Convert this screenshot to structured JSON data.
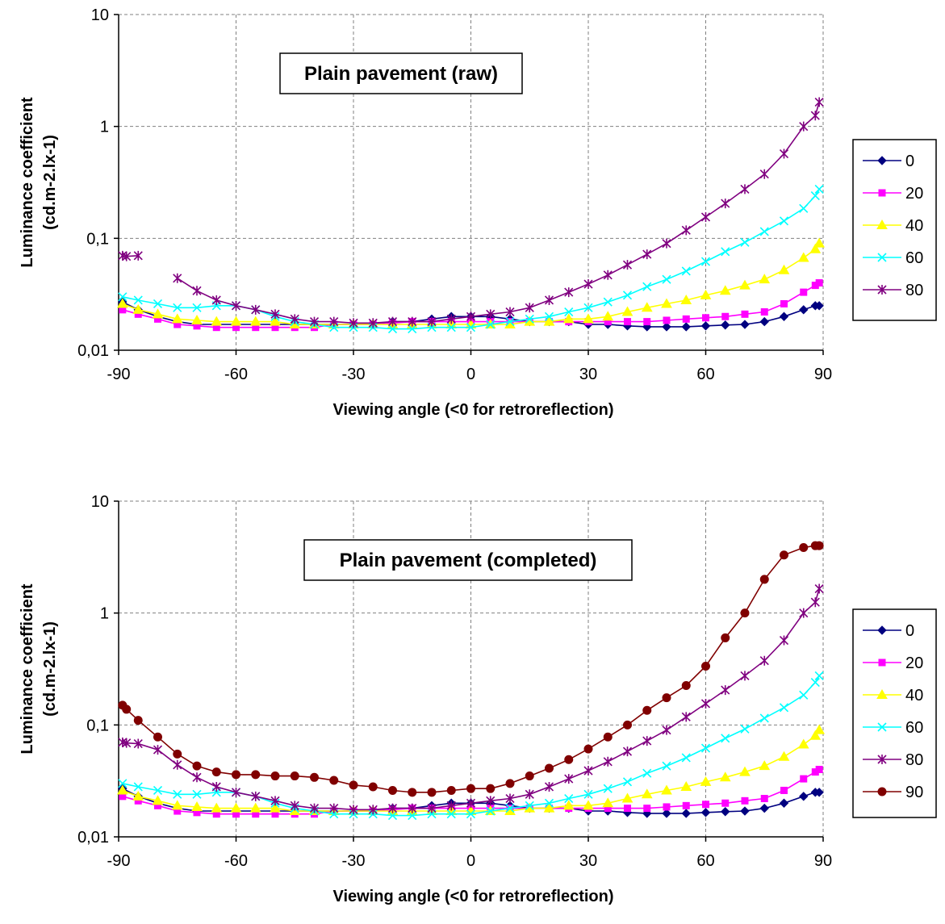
{
  "chart_data": [
    {
      "type": "line",
      "title": "Plain pavement (raw)",
      "xlabel": "Viewing angle (<0 for retroreflection)",
      "ylabel": "Luminance coefficient (cd.m-2.lx-1)",
      "ylabel_lines": [
        "Luminance coefficient",
        "(cd.m-2.lx-1)"
      ],
      "xlim": [
        -90,
        90
      ],
      "ylim": [
        0.01,
        10
      ],
      "y_scale": "log",
      "x_ticks": [
        "-90",
        "-60",
        "-30",
        "0",
        "30",
        "60",
        "90"
      ],
      "y_ticks": [
        "0,01",
        "0,1",
        "1",
        "10"
      ],
      "grid": true,
      "legend_position": "right",
      "series": [
        {
          "name": "0",
          "color": "#000080",
          "marker": "diamond",
          "x": [
            -89,
            -85,
            -80,
            -75,
            -70,
            -65,
            -60,
            -55,
            -50,
            -45,
            -40,
            -35,
            -30,
            -25,
            -20,
            -15,
            -10,
            -5,
            0,
            5,
            10,
            15,
            20,
            25,
            30,
            35,
            40,
            45,
            50,
            55,
            60,
            65,
            70,
            75,
            80,
            85,
            88,
            89
          ],
          "y": [
            0.027,
            0.023,
            0.02,
            0.018,
            0.017,
            0.017,
            0.017,
            0.017,
            0.017,
            0.017,
            0.017,
            0.017,
            0.017,
            0.017,
            0.018,
            0.018,
            0.019,
            0.02,
            0.02,
            0.02,
            0.019,
            0.018,
            0.018,
            0.018,
            0.017,
            0.017,
            0.0165,
            0.0162,
            0.0162,
            0.0162,
            0.0165,
            0.0168,
            0.017,
            0.018,
            0.02,
            0.023,
            0.025,
            0.025
          ]
        },
        {
          "name": "20",
          "color": "#ff00ff",
          "marker": "square",
          "x": [
            -89,
            -85,
            -80,
            -75,
            -70,
            -65,
            -60,
            -55,
            -50,
            -45,
            -40,
            -35,
            -30,
            -25,
            -20,
            -15,
            -10,
            -5,
            0,
            5,
            10,
            15,
            20,
            25,
            30,
            35,
            40,
            45,
            50,
            55,
            60,
            65,
            70,
            75,
            80,
            85,
            88,
            89
          ],
          "y": [
            0.023,
            0.021,
            0.019,
            0.017,
            0.0165,
            0.016,
            0.016,
            0.016,
            0.016,
            0.016,
            0.016,
            0.017,
            0.017,
            0.017,
            0.0175,
            0.018,
            0.018,
            0.018,
            0.018,
            0.018,
            0.018,
            0.018,
            0.018,
            0.018,
            0.018,
            0.018,
            0.018,
            0.018,
            0.0185,
            0.019,
            0.0195,
            0.02,
            0.021,
            0.022,
            0.026,
            0.033,
            0.038,
            0.04
          ]
        },
        {
          "name": "40",
          "color": "#ffff00",
          "marker": "triangle",
          "x": [
            -89,
            -85,
            -80,
            -75,
            -70,
            -65,
            -60,
            -55,
            -50,
            -45,
            -40,
            -35,
            -30,
            -25,
            -20,
            -15,
            -10,
            -5,
            0,
            5,
            10,
            15,
            20,
            25,
            30,
            35,
            40,
            45,
            50,
            55,
            60,
            65,
            70,
            75,
            80,
            85,
            88,
            89
          ],
          "y": [
            0.026,
            0.023,
            0.021,
            0.019,
            0.0185,
            0.018,
            0.018,
            0.018,
            0.018,
            0.017,
            0.017,
            0.017,
            0.017,
            0.017,
            0.017,
            0.017,
            0.017,
            0.017,
            0.017,
            0.017,
            0.017,
            0.018,
            0.018,
            0.019,
            0.019,
            0.02,
            0.022,
            0.024,
            0.026,
            0.028,
            0.031,
            0.034,
            0.038,
            0.043,
            0.052,
            0.067,
            0.08,
            0.09
          ]
        },
        {
          "name": "60",
          "color": "#00ffff",
          "marker": "x",
          "x": [
            -89,
            -85,
            -80,
            -75,
            -70,
            -65,
            -60,
            -55,
            -50,
            -45,
            -40,
            -35,
            -30,
            -25,
            -20,
            -15,
            -10,
            -5,
            0,
            5,
            10,
            15,
            20,
            25,
            30,
            35,
            40,
            45,
            50,
            55,
            60,
            65,
            70,
            75,
            80,
            85,
            88,
            89
          ],
          "y": [
            0.03,
            0.028,
            0.026,
            0.024,
            0.024,
            0.025,
            0.025,
            0.023,
            0.02,
            0.018,
            0.017,
            0.016,
            0.016,
            0.016,
            0.0155,
            0.0155,
            0.016,
            0.016,
            0.016,
            0.017,
            0.018,
            0.019,
            0.02,
            0.022,
            0.024,
            0.027,
            0.031,
            0.037,
            0.043,
            0.051,
            0.062,
            0.076,
            0.092,
            0.115,
            0.143,
            0.185,
            0.24,
            0.275
          ]
        },
        {
          "name": "80",
          "color": "#800080",
          "marker": "star",
          "x": [
            -89,
            -88,
            -85,
            -75,
            -70,
            -65,
            -60,
            -55,
            -50,
            -45,
            -40,
            -35,
            -30,
            -25,
            -20,
            -15,
            -10,
            -5,
            0,
            5,
            10,
            15,
            20,
            25,
            30,
            35,
            40,
            45,
            50,
            55,
            60,
            65,
            70,
            75,
            80,
            85,
            88,
            89
          ],
          "y": [
            0.07,
            0.069,
            0.07,
            0.044,
            0.034,
            0.028,
            0.025,
            0.023,
            0.021,
            0.019,
            0.018,
            0.018,
            0.0175,
            0.0175,
            0.018,
            0.018,
            0.018,
            0.019,
            0.02,
            0.021,
            0.022,
            0.024,
            0.028,
            0.033,
            0.039,
            0.047,
            0.058,
            0.072,
            0.09,
            0.118,
            0.155,
            0.205,
            0.275,
            0.375,
            0.57,
            1.0,
            1.25,
            1.65
          ],
          "gaps_after_index": [
            2
          ]
        }
      ]
    },
    {
      "type": "line",
      "title": "Plain pavement (completed)",
      "xlabel": "Viewing angle (<0 for retroreflection)",
      "ylabel": "Luminance coefficient (cd.m-2.lx-1)",
      "ylabel_lines": [
        "Luminance coefficient",
        "(cd.m-2.lx-1)"
      ],
      "xlim": [
        -90,
        90
      ],
      "ylim": [
        0.01,
        10
      ],
      "y_scale": "log",
      "x_ticks": [
        "-90",
        "-60",
        "-30",
        "0",
        "30",
        "60",
        "90"
      ],
      "y_ticks": [
        "0,01",
        "0,1",
        "1",
        "10"
      ],
      "grid": true,
      "legend_position": "right",
      "series": [
        {
          "name": "0",
          "color": "#000080",
          "marker": "diamond",
          "x": [
            -89,
            -85,
            -80,
            -75,
            -70,
            -65,
            -60,
            -55,
            -50,
            -45,
            -40,
            -35,
            -30,
            -25,
            -20,
            -15,
            -10,
            -5,
            0,
            5,
            10,
            15,
            20,
            25,
            30,
            35,
            40,
            45,
            50,
            55,
            60,
            65,
            70,
            75,
            80,
            85,
            88,
            89
          ],
          "y": [
            0.027,
            0.023,
            0.02,
            0.018,
            0.017,
            0.017,
            0.017,
            0.017,
            0.017,
            0.017,
            0.017,
            0.017,
            0.017,
            0.017,
            0.018,
            0.018,
            0.019,
            0.02,
            0.02,
            0.02,
            0.019,
            0.018,
            0.018,
            0.018,
            0.017,
            0.017,
            0.0165,
            0.0162,
            0.0162,
            0.0162,
            0.0165,
            0.0168,
            0.017,
            0.018,
            0.02,
            0.023,
            0.025,
            0.025
          ]
        },
        {
          "name": "20",
          "color": "#ff00ff",
          "marker": "square",
          "x": [
            -89,
            -85,
            -80,
            -75,
            -70,
            -65,
            -60,
            -55,
            -50,
            -45,
            -40,
            -35,
            -30,
            -25,
            -20,
            -15,
            -10,
            -5,
            0,
            5,
            10,
            15,
            20,
            25,
            30,
            35,
            40,
            45,
            50,
            55,
            60,
            65,
            70,
            75,
            80,
            85,
            88,
            89
          ],
          "y": [
            0.023,
            0.021,
            0.019,
            0.017,
            0.0165,
            0.016,
            0.016,
            0.016,
            0.016,
            0.016,
            0.016,
            0.017,
            0.017,
            0.017,
            0.0175,
            0.018,
            0.018,
            0.018,
            0.018,
            0.018,
            0.018,
            0.018,
            0.018,
            0.018,
            0.018,
            0.018,
            0.018,
            0.018,
            0.0185,
            0.019,
            0.0195,
            0.02,
            0.021,
            0.022,
            0.026,
            0.033,
            0.038,
            0.04
          ]
        },
        {
          "name": "40",
          "color": "#ffff00",
          "marker": "triangle",
          "x": [
            -89,
            -85,
            -80,
            -75,
            -70,
            -65,
            -60,
            -55,
            -50,
            -45,
            -40,
            -35,
            -30,
            -25,
            -20,
            -15,
            -10,
            -5,
            0,
            5,
            10,
            15,
            20,
            25,
            30,
            35,
            40,
            45,
            50,
            55,
            60,
            65,
            70,
            75,
            80,
            85,
            88,
            89
          ],
          "y": [
            0.026,
            0.023,
            0.021,
            0.019,
            0.0185,
            0.018,
            0.018,
            0.018,
            0.018,
            0.017,
            0.017,
            0.017,
            0.017,
            0.017,
            0.017,
            0.017,
            0.017,
            0.017,
            0.017,
            0.017,
            0.017,
            0.018,
            0.018,
            0.019,
            0.019,
            0.02,
            0.022,
            0.024,
            0.026,
            0.028,
            0.031,
            0.034,
            0.038,
            0.043,
            0.052,
            0.067,
            0.08,
            0.09
          ]
        },
        {
          "name": "60",
          "color": "#00ffff",
          "marker": "x",
          "x": [
            -89,
            -85,
            -80,
            -75,
            -70,
            -65,
            -60,
            -55,
            -50,
            -45,
            -40,
            -35,
            -30,
            -25,
            -20,
            -15,
            -10,
            -5,
            0,
            5,
            10,
            15,
            20,
            25,
            30,
            35,
            40,
            45,
            50,
            55,
            60,
            65,
            70,
            75,
            80,
            85,
            88,
            89
          ],
          "y": [
            0.03,
            0.028,
            0.026,
            0.024,
            0.024,
            0.025,
            0.025,
            0.023,
            0.02,
            0.018,
            0.017,
            0.016,
            0.016,
            0.016,
            0.0155,
            0.0155,
            0.016,
            0.016,
            0.016,
            0.017,
            0.018,
            0.019,
            0.02,
            0.022,
            0.024,
            0.027,
            0.031,
            0.037,
            0.043,
            0.051,
            0.062,
            0.076,
            0.092,
            0.115,
            0.143,
            0.185,
            0.24,
            0.275
          ]
        },
        {
          "name": "80",
          "color": "#800080",
          "marker": "star",
          "x": [
            -89,
            -88,
            -85,
            -80,
            -75,
            -70,
            -65,
            -60,
            -55,
            -50,
            -45,
            -40,
            -35,
            -30,
            -25,
            -20,
            -15,
            -10,
            -5,
            0,
            5,
            10,
            15,
            20,
            25,
            30,
            35,
            40,
            45,
            50,
            55,
            60,
            65,
            70,
            75,
            80,
            85,
            88,
            89
          ],
          "y": [
            0.07,
            0.069,
            0.068,
            0.06,
            0.044,
            0.034,
            0.028,
            0.025,
            0.023,
            0.021,
            0.019,
            0.018,
            0.018,
            0.0175,
            0.0175,
            0.018,
            0.018,
            0.018,
            0.019,
            0.02,
            0.021,
            0.022,
            0.024,
            0.028,
            0.033,
            0.039,
            0.047,
            0.058,
            0.072,
            0.09,
            0.118,
            0.155,
            0.205,
            0.275,
            0.375,
            0.57,
            1.0,
            1.25,
            1.65
          ]
        },
        {
          "name": "90",
          "color": "#800000",
          "marker": "circle",
          "x": [
            -89,
            -88,
            -85,
            -80,
            -75,
            -70,
            -65,
            -60,
            -55,
            -50,
            -45,
            -40,
            -35,
            -30,
            -25,
            -20,
            -15,
            -10,
            -5,
            0,
            5,
            10,
            15,
            20,
            25,
            30,
            35,
            40,
            45,
            50,
            55,
            60,
            65,
            70,
            75,
            80,
            85,
            88,
            89
          ],
          "y": [
            0.15,
            0.138,
            0.11,
            0.078,
            0.055,
            0.043,
            0.038,
            0.036,
            0.036,
            0.035,
            0.035,
            0.034,
            0.032,
            0.029,
            0.028,
            0.026,
            0.025,
            0.025,
            0.026,
            0.027,
            0.027,
            0.03,
            0.035,
            0.041,
            0.049,
            0.061,
            0.078,
            0.1,
            0.135,
            0.175,
            0.225,
            0.335,
            0.6,
            1.0,
            2.0,
            3.3,
            3.85,
            4.0,
            4.0
          ]
        }
      ]
    }
  ]
}
